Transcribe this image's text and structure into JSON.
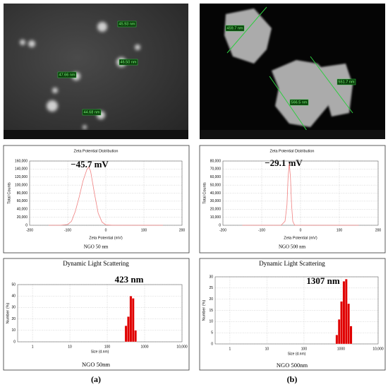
{
  "images": [
    {
      "labels": [
        "45.93 nm",
        "46.50 nm",
        "47.66 nm",
        "44.68 nm"
      ]
    },
    {
      "labels": [
        "459.7 nm",
        "551.7 nm",
        "566.5 nm"
      ]
    }
  ],
  "panel_labels": [
    "(a)",
    "(b)"
  ],
  "chart_data": [
    {
      "type": "line",
      "title": "Zeta Potential Distribution",
      "x_label": "Zeta Potential (mV)",
      "y_label": "Total Counts",
      "annotation": "−45.7 mV",
      "footer": "NGO 50 nm",
      "grid": true,
      "xlim": [
        -200,
        200
      ],
      "xticks": [
        -200,
        -100,
        0,
        100,
        200
      ],
      "ylim": [
        0,
        160000
      ],
      "yticks": [
        0,
        {
          "value": 20000,
          "label": "20,000"
        },
        {
          "value": 40000,
          "label": "40,000"
        },
        {
          "value": 60000,
          "label": "60,000"
        },
        {
          "value": 80000,
          "label": "80,000"
        },
        {
          "value": 100000,
          "label": "100,000"
        },
        {
          "value": 120000,
          "label": "120,000"
        },
        {
          "value": 140000,
          "label": "140,000"
        },
        {
          "value": 160000,
          "label": "160,000"
        }
      ],
      "x": [
        -150,
        -120,
        -100,
        -90,
        -80,
        -70,
        -60,
        -50,
        -45,
        -40,
        -30,
        -20,
        -10,
        0,
        20,
        150
      ],
      "series": [
        {
          "color": "#f08080",
          "values": [
            0,
            0,
            2000,
            10000,
            35000,
            70000,
            110000,
            138000,
            145000,
            135000,
            80000,
            30000,
            8000,
            1000,
            0,
            0
          ]
        }
      ]
    },
    {
      "type": "line",
      "title": "Zeta Potential Distribution",
      "x_label": "Zeta Potential (mV)",
      "y_label": "Total Counts",
      "annotation": "−29.1 mV",
      "footer": "NGO 500 nm",
      "grid": true,
      "xlim": [
        -200,
        200
      ],
      "xticks": [
        -200,
        -100,
        0,
        100,
        200
      ],
      "ylim": [
        0,
        80000
      ],
      "yticks": [
        0,
        {
          "value": 10000,
          "label": "10,000"
        },
        {
          "value": 20000,
          "label": "20,000"
        },
        {
          "value": 30000,
          "label": "30,000"
        },
        {
          "value": 40000,
          "label": "40,000"
        },
        {
          "value": 50000,
          "label": "50,000"
        },
        {
          "value": 60000,
          "label": "60,000"
        },
        {
          "value": 70000,
          "label": "70,000"
        },
        {
          "value": 80000,
          "label": "80,000"
        }
      ],
      "x": [
        -150,
        -50,
        -40,
        -35,
        -32,
        -29,
        -26,
        -23,
        -20,
        -15,
        150
      ],
      "series": [
        {
          "color": "#f08080",
          "values": [
            0,
            0,
            5000,
            25000,
            60000,
            77000,
            60000,
            25000,
            5000,
            0,
            0
          ]
        }
      ]
    },
    {
      "type": "histogram",
      "title": "Dynamic Light Scattering",
      "x_label": "Size (d.nm)",
      "y_label": "Number (%)",
      "annotation": "423 nm",
      "footer": "NGO 50nm",
      "grid": true,
      "xscale": "log",
      "color": "#e00000",
      "xlim": [
        0.4,
        10000
      ],
      "xticks": [
        1,
        10,
        100,
        1000,
        {
          "value": 10000,
          "label": "10,000"
        }
      ],
      "ylim": [
        0,
        50
      ],
      "yticks": [
        0,
        10,
        20,
        30,
        40,
        50
      ],
      "bins": [
        295,
        342,
        396,
        459,
        531,
        615
      ],
      "values": [
        14,
        22,
        40,
        38,
        10
      ]
    },
    {
      "type": "histogram",
      "title": "Dynamic Light Scattering",
      "x_label": "Size (d.nm)",
      "y_label": "Number (%)",
      "annotation": "1307 nm",
      "footer": "NGO 500nm",
      "grid": true,
      "xscale": "log",
      "color": "#e00000",
      "xlim": [
        0.4,
        10000
      ],
      "xticks": [
        1,
        10,
        100,
        1000,
        {
          "value": 10000,
          "label": "10,000"
        }
      ],
      "ylim": [
        0,
        30
      ],
      "yticks": [
        0,
        5,
        10,
        15,
        20,
        25,
        30
      ],
      "bins": [
        712,
        825,
        955,
        1106,
        1281,
        1484,
        1718,
        1990
      ],
      "values": [
        4,
        11,
        19,
        28,
        29,
        18,
        8
      ]
    }
  ]
}
